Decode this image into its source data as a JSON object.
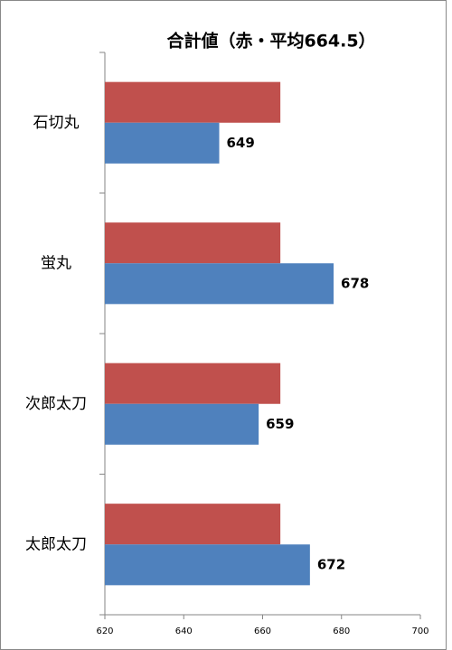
{
  "chart_data": {
    "type": "bar",
    "orientation": "horizontal",
    "title": "合計値（赤・平均664.5）",
    "categories": [
      "石切丸",
      "蛍丸",
      "次郎太刀",
      "太郎太刀"
    ],
    "series": [
      {
        "color": "#c0504d",
        "values": [
          664.5,
          664.5,
          664.5,
          664.5
        ]
      },
      {
        "color": "#4f81bd",
        "values": [
          649,
          678,
          659,
          672
        ],
        "show_value_labels": true
      }
    ],
    "xlim": [
      620,
      700
    ],
    "xticks": [
      620,
      640,
      660,
      680,
      700
    ],
    "grid": false
  }
}
